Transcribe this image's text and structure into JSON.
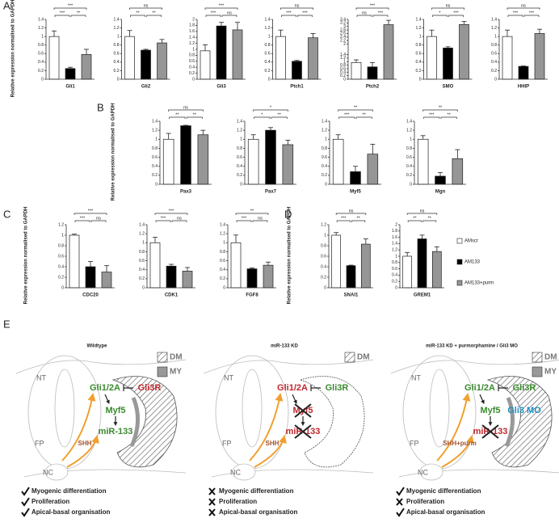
{
  "legend": [
    {
      "name": "AMscr",
      "color": "#ffffff"
    },
    {
      "name": "AM133",
      "color": "#000000"
    },
    {
      "name": "AM133+purm",
      "color": "#969696"
    }
  ],
  "panels": [
    {
      "letter": "A",
      "ylabel": "Relative expression normalised to GAPDH"
    },
    {
      "letter": "B",
      "ylabel": "Relative expression normalised to GAPDH"
    },
    {
      "letter": "C",
      "ylabel": "Relative expression normalised to GAPDH"
    },
    {
      "letter": "D",
      "ylabel": "Relative expression normalised to GAPDH"
    }
  ],
  "chart_data": [
    {
      "type": "bar",
      "xlabel": "Gli1",
      "values": [
        1,
        0.25,
        0.58
      ],
      "errors": [
        0.13,
        0.03,
        0.12
      ],
      "significance": [
        "***",
        "***",
        "**"
      ],
      "ylim": [
        0,
        1.4
      ],
      "yticks": [
        0,
        0.2,
        0.4,
        0.6,
        0.8,
        1,
        1.2,
        1.4
      ]
    },
    {
      "type": "bar",
      "xlabel": "Gli2",
      "values": [
        1,
        0.68,
        0.85
      ],
      "errors": [
        0.14,
        0.02,
        0.08
      ],
      "significance": [
        "ns",
        "**",
        "**"
      ],
      "ylim": [
        0,
        1.4
      ],
      "yticks": [
        0,
        0.2,
        0.4,
        0.6,
        0.8,
        1,
        1.2,
        1.4
      ]
    },
    {
      "type": "bar",
      "xlabel": "Gli3",
      "values": [
        0.95,
        1.78,
        1.65
      ],
      "errors": [
        0.2,
        0.12,
        0.25
      ],
      "significance": [
        "***",
        "***",
        "ns"
      ],
      "ylim": [
        0,
        2
      ],
      "yticks": [
        0,
        0.2,
        0.4,
        0.6,
        0.8,
        1,
        1.2,
        1.4,
        1.6,
        1.8,
        2
      ]
    },
    {
      "type": "bar",
      "xlabel": "Ptch1",
      "values": [
        1,
        0.42,
        0.97
      ],
      "errors": [
        0.15,
        0.02,
        0.1
      ],
      "significance": [
        "ns",
        "***",
        "***"
      ],
      "ylim": [
        0,
        1.4
      ],
      "yticks": [
        0,
        0.2,
        0.4,
        0.6,
        0.8,
        1,
        1.2,
        1.4
      ]
    },
    {
      "type": "bar",
      "xlabel": "Ptch2",
      "values": [
        0.95,
        0.7,
        3.1
      ],
      "errors": [
        0.15,
        0.25,
        0.25
      ],
      "significance": [
        "***",
        "ns",
        "***"
      ],
      "ylim": [
        0,
        3.4
      ],
      "yticks": [
        0,
        0.2,
        0.4,
        0.6,
        0.8,
        1,
        1.2,
        1.4,
        2,
        2.2,
        2.4,
        2.6,
        2.8,
        3,
        3.2,
        3.4
      ]
    },
    {
      "type": "bar",
      "xlabel": "SMO",
      "values": [
        1,
        0.73,
        1.28
      ],
      "errors": [
        0.15,
        0.03,
        0.07
      ],
      "significance": [
        "ns",
        "*",
        "***"
      ],
      "ylim": [
        0,
        1.4
      ],
      "yticks": [
        0,
        0.2,
        0.4,
        0.6,
        0.8,
        1,
        1.2,
        1.4
      ]
    },
    {
      "type": "bar",
      "xlabel": "HHIP",
      "values": [
        1,
        0.3,
        1.07
      ],
      "errors": [
        0.15,
        0.01,
        0.1
      ],
      "significance": [
        "ns",
        "***",
        "***"
      ],
      "ylim": [
        0,
        1.4
      ],
      "yticks": [
        0,
        0.2,
        0.4,
        0.6,
        0.8,
        1,
        1.2,
        1.4
      ]
    },
    {
      "type": "bar",
      "xlabel": "Pax3",
      "values": [
        1,
        1.3,
        1.1
      ],
      "errors": [
        0.13,
        0.01,
        0.1
      ],
      "significance": [
        "ns",
        "**",
        "**"
      ],
      "ylim": [
        0,
        1.4
      ],
      "yticks": [
        0,
        0.2,
        0.4,
        0.6,
        0.8,
        1,
        1.2,
        1.4
      ]
    },
    {
      "type": "bar",
      "xlabel": "Pax7",
      "values": [
        1,
        1.2,
        0.88
      ],
      "errors": [
        0.1,
        0.06,
        0.1
      ],
      "significance": [
        "*",
        "*",
        "**"
      ],
      "ylim": [
        0,
        1.4
      ],
      "yticks": [
        0,
        0.2,
        0.4,
        0.6,
        0.8,
        1,
        1.2,
        1.4
      ]
    },
    {
      "type": "bar",
      "xlabel": "Myf5",
      "values": [
        1,
        0.28,
        0.67
      ],
      "errors": [
        0.1,
        0.12,
        0.22
      ],
      "significance": [
        "**",
        "***",
        "**"
      ],
      "ylim": [
        0,
        1.4
      ],
      "yticks": [
        0,
        0.2,
        0.4,
        0.6,
        0.8,
        1,
        1.2,
        1.4
      ]
    },
    {
      "type": "bar",
      "xlabel": "Mgn",
      "values": [
        1,
        0.18,
        0.57
      ],
      "errors": [
        0.08,
        0.08,
        0.2
      ],
      "significance": [
        "**",
        "***",
        "**"
      ],
      "ylim": [
        0,
        1.4
      ],
      "yticks": [
        0,
        0.2,
        0.4,
        0.6,
        0.8,
        1,
        1.2,
        1.4
      ]
    },
    {
      "type": "bar",
      "xlabel": "CDC20",
      "values": [
        1,
        0.4,
        0.3
      ],
      "errors": [
        0.02,
        0.1,
        0.12
      ],
      "significance": [
        "***",
        "***",
        "ns"
      ],
      "ylim": [
        0,
        1.2
      ],
      "yticks": [
        0,
        0.2,
        0.4,
        0.6,
        0.8,
        1,
        1.2
      ]
    },
    {
      "type": "bar",
      "xlabel": "CDK1",
      "values": [
        1,
        0.48,
        0.37
      ],
      "errors": [
        0.12,
        0.04,
        0.08
      ],
      "significance": [
        "***",
        "***",
        "ns"
      ],
      "ylim": [
        0,
        1.4
      ],
      "yticks": [
        0,
        0.2,
        0.4,
        0.6,
        0.8,
        1,
        1.2,
        1.4
      ]
    },
    {
      "type": "bar",
      "xlabel": "FGF8",
      "values": [
        1,
        0.42,
        0.5
      ],
      "errors": [
        0.17,
        0.02,
        0.07
      ],
      "significance": [
        "**",
        "***",
        "ns"
      ],
      "ylim": [
        0,
        1.4
      ],
      "yticks": [
        0,
        0.2,
        0.4,
        0.6,
        0.8,
        1,
        1.2,
        1.4
      ]
    },
    {
      "type": "bar",
      "xlabel": "SNAI1",
      "values": [
        1,
        0.42,
        0.83
      ],
      "errors": [
        0.05,
        0.01,
        0.1
      ],
      "significance": [
        "ns",
        "***",
        "**"
      ],
      "ylim": [
        0,
        1.2
      ],
      "yticks": [
        0,
        0.2,
        0.4,
        0.6,
        0.8,
        1,
        1.2
      ]
    },
    {
      "type": "bar",
      "xlabel": "GREM1",
      "values": [
        1,
        1.55,
        1.15
      ],
      "errors": [
        0.12,
        0.12,
        0.15
      ],
      "significance": [
        "ns",
        "**",
        "**"
      ],
      "ylim": [
        0,
        2
      ],
      "yticks": [
        0,
        0.2,
        0.4,
        0.6,
        0.8,
        1,
        1.2,
        1.4,
        1.6,
        1.8,
        2
      ]
    }
  ],
  "diagram": {
    "letter": "E",
    "panels": [
      {
        "title": "Wildtype",
        "regions": [
          "NT",
          "FP",
          "NC"
        ],
        "key": [
          "DM",
          "MY"
        ],
        "nodes": [
          {
            "text": "Gli1/2A",
            "color": "#3a8a2e"
          },
          {
            "text": "Gli3R",
            "color": "#c0272d"
          },
          {
            "text": "Myf5",
            "color": "#3a8a2e"
          },
          {
            "text": "miR-133",
            "color": "#3a8a2e"
          },
          {
            "text": "SHH",
            "color": "#a0522d"
          }
        ],
        "outcomes": [
          {
            "text": "Myogenic differentiation",
            "ok": true
          },
          {
            "text": "Proliferation",
            "ok": true
          },
          {
            "text": "Apical-basal organisation",
            "ok": true
          }
        ]
      },
      {
        "title": "miR-133 KD",
        "regions": [
          "NT",
          "FP",
          "NC"
        ],
        "key": [
          "DM"
        ],
        "nodes": [
          {
            "text": "Gli1/2A",
            "color": "#c0272d"
          },
          {
            "text": "Gli3R",
            "color": "#3a8a2e"
          },
          {
            "text": "Myf5",
            "color": "#c0272d",
            "crossed": true
          },
          {
            "text": "miR-133",
            "color": "#c0272d",
            "crossed": true
          },
          {
            "text": "SHH",
            "color": "#a0522d"
          }
        ],
        "outcomes": [
          {
            "text": "Myogenic differentiation",
            "ok": false
          },
          {
            "text": "Proliferation",
            "ok": false
          },
          {
            "text": "Apical-basal organisation",
            "ok": false
          }
        ]
      },
      {
        "title": "miR-133 KD + purmorphamine / Gli3 MO",
        "regions": [
          "NT",
          "FP",
          "NC"
        ],
        "key": [
          "DM",
          "MY"
        ],
        "nodes": [
          {
            "text": "Gli1/2A",
            "color": "#3a8a2e"
          },
          {
            "text": "Gli3R",
            "color": "#3a8a2e"
          },
          {
            "text": "Myf5",
            "color": "#3a8a2e"
          },
          {
            "text": "miR-133",
            "color": "#c0272d",
            "crossed": true
          },
          {
            "text": "SHH+purm",
            "color": "#a0522d"
          },
          {
            "text": "Gli3 MO",
            "color": "#1b8fc4"
          }
        ],
        "outcomes": [
          {
            "text": "Myogenic differentiation",
            "ok": true
          },
          {
            "text": "Proliferation",
            "ok": false
          },
          {
            "text": "Apical-basal organisation",
            "ok": true
          }
        ]
      }
    ]
  }
}
